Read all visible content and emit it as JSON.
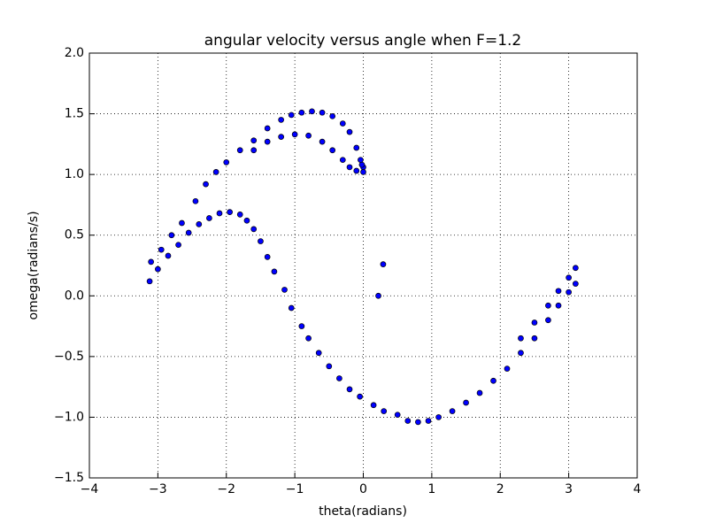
{
  "chart_data": {
    "type": "scatter",
    "title": "angular velocity versus angle when F=1.2",
    "x_label": "theta(radians)",
    "y_label": "omega(radians/s)",
    "series": [
      {
        "color": "#0000ff",
        "x": [
          -3.1,
          -2.95,
          -2.8,
          -2.65,
          -2.45,
          -2.3,
          -2.15,
          -2.0,
          -1.8,
          -1.6,
          -1.4,
          -1.2,
          -1.05,
          -0.9,
          -0.75,
          -0.6,
          -0.45,
          -0.3,
          -0.2,
          -0.1,
          -0.04,
          0.0,
          -1.6,
          -1.4,
          -1.2,
          -1.0,
          -0.8,
          -0.6,
          -0.45,
          -0.3,
          -0.2,
          -0.1,
          0.0,
          -0.02,
          -3.12,
          -3.0,
          -2.85,
          -2.7,
          -2.55,
          -2.4,
          -2.25,
          -2.1,
          -1.95,
          -1.8,
          -1.7,
          -1.6,
          -1.5,
          -1.4,
          -1.3,
          -1.15,
          -1.05,
          -0.9,
          -0.8,
          -0.65,
          -0.5,
          -0.35,
          -0.2,
          -0.05,
          0.15,
          0.3,
          0.5,
          0.65,
          0.8,
          0.95,
          1.1,
          1.3,
          1.5,
          1.7,
          1.9,
          2.1,
          2.3,
          2.5,
          2.7,
          2.85,
          3.0,
          3.1,
          2.3,
          2.5,
          2.7,
          2.85,
          3.0,
          3.1,
          0.22,
          0.29
        ],
        "y": [
          0.28,
          0.38,
          0.5,
          0.6,
          0.78,
          0.92,
          1.02,
          1.1,
          1.2,
          1.28,
          1.38,
          1.45,
          1.49,
          1.51,
          1.52,
          1.51,
          1.48,
          1.42,
          1.35,
          1.22,
          1.12,
          1.06,
          1.2,
          1.27,
          1.31,
          1.33,
          1.32,
          1.27,
          1.2,
          1.12,
          1.06,
          1.03,
          1.02,
          1.08,
          0.12,
          0.22,
          0.33,
          0.42,
          0.52,
          0.59,
          0.64,
          0.68,
          0.69,
          0.67,
          0.62,
          0.55,
          0.45,
          0.32,
          0.2,
          0.05,
          -0.1,
          -0.25,
          -0.35,
          -0.47,
          -0.58,
          -0.68,
          -0.77,
          -0.83,
          -0.9,
          -0.95,
          -0.98,
          -1.03,
          -1.04,
          -1.03,
          -1.0,
          -0.95,
          -0.88,
          -0.8,
          -0.7,
          -0.6,
          -0.47,
          -0.35,
          -0.2,
          -0.08,
          0.03,
          0.1,
          -0.35,
          -0.22,
          -0.08,
          0.04,
          0.15,
          0.23,
          0.0,
          0.26
        ]
      }
    ],
    "xlim": [
      -4,
      4
    ],
    "xticks": [
      {
        "value": -4,
        "label": "−4"
      },
      {
        "value": -3,
        "label": "−3"
      },
      {
        "value": -2,
        "label": "−2"
      },
      {
        "value": -1,
        "label": "−1"
      },
      0,
      1,
      2,
      3,
      4
    ],
    "ylim": [
      -1.5,
      2.0
    ],
    "yticks": [
      {
        "value": -1.5,
        "label": "−1.5"
      },
      {
        "value": -1.0,
        "label": "−1.0"
      },
      {
        "value": -0.5,
        "label": "−0.5"
      },
      {
        "value": 0.0,
        "label": "0.0"
      },
      0.5,
      {
        "value": 1.0,
        "label": "1.0"
      },
      1.5,
      {
        "value": 2.0,
        "label": "2.0"
      }
    ],
    "grid": true
  }
}
